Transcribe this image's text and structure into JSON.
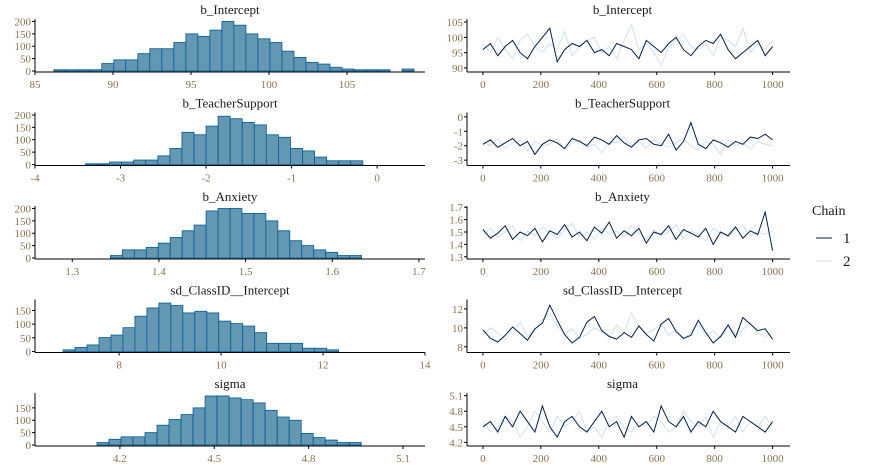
{
  "colors": {
    "hist_fill": "#6497b1",
    "hist_border": "#005b96",
    "chain_1": "#011f4b",
    "chain_2": "#d1e1ec",
    "tick_text": "#8a7250",
    "axis": "#000000"
  },
  "legend": {
    "title": "Chain",
    "entries": [
      "1",
      "2"
    ],
    "placement": "right"
  },
  "chart_data": [
    {
      "type": "bar",
      "title": "b_Intercept",
      "xlim": [
        85,
        110
      ],
      "xticks": [
        "85",
        "90",
        "95",
        "100",
        "105"
      ],
      "xtick_values": [
        85,
        90,
        95,
        100,
        105
      ],
      "yticks": [
        "0",
        "50",
        "100",
        "150",
        "200"
      ],
      "ylim": [
        0,
        210
      ],
      "bin_start": 86.2,
      "bin_width": 0.77,
      "counts": [
        5,
        5,
        5,
        5,
        30,
        45,
        45,
        70,
        90,
        90,
        115,
        150,
        140,
        165,
        200,
        185,
        150,
        130,
        115,
        80,
        55,
        35,
        28,
        15,
        8,
        5,
        5,
        5,
        0,
        8
      ]
    },
    {
      "type": "bar",
      "title": "b_TeacherSupport",
      "xlim": [
        -4,
        0.56
      ],
      "xticks": [
        "-4",
        "-3",
        "-2",
        "-1",
        "0"
      ],
      "xtick_values": [
        -4,
        -3,
        -2,
        -1,
        0
      ],
      "yticks": [
        "0",
        "50",
        "100",
        "150",
        "200"
      ],
      "ylim": [
        0,
        210
      ],
      "bin_start": -3.41,
      "bin_width": 0.141,
      "counts": [
        3,
        3,
        10,
        10,
        18,
        18,
        35,
        65,
        130,
        120,
        155,
        195,
        185,
        170,
        160,
        120,
        110,
        65,
        55,
        30,
        15,
        15,
        15
      ]
    },
    {
      "type": "bar",
      "title": "b_Anxiety",
      "xlim": [
        1.257,
        1.707
      ],
      "xticks": [
        "1.3",
        "1.4",
        "1.5",
        "1.6",
        "1.7"
      ],
      "xtick_values": [
        1.3,
        1.4,
        1.5,
        1.6,
        1.7
      ],
      "yticks": [
        "0",
        "50",
        "100",
        "150",
        "200"
      ],
      "ylim": [
        0,
        210
      ],
      "bin_start": 1.344,
      "bin_width": 0.0138,
      "counts": [
        10,
        33,
        33,
        43,
        60,
        83,
        110,
        133,
        190,
        200,
        200,
        180,
        180,
        150,
        110,
        70,
        50,
        33,
        23,
        10,
        10
      ]
    },
    {
      "type": "bar",
      "title": "sd_ClassID__Intercept",
      "xlim": [
        6.35,
        14.0
      ],
      "xticks": [
        "8",
        "10",
        "12",
        "14"
      ],
      "xtick_values": [
        8,
        10,
        12,
        14
      ],
      "yticks": [
        "0",
        "50",
        "100",
        "150"
      ],
      "ylim": [
        0,
        190
      ],
      "bin_start": 6.9,
      "bin_width": 0.235,
      "counts": [
        6,
        15,
        24,
        51,
        60,
        87,
        129,
        159,
        177,
        168,
        141,
        147,
        141,
        111,
        102,
        93,
        69,
        30,
        30,
        30,
        12,
        12,
        6
      ]
    },
    {
      "type": "bar",
      "title": "sigma",
      "xlim": [
        3.93,
        5.17
      ],
      "xticks": [
        "4.2",
        "4.5",
        "4.8",
        "5.1"
      ],
      "xtick_values": [
        4.2,
        4.5,
        4.8,
        5.1
      ],
      "yticks": [
        "0",
        "50",
        "100",
        "150"
      ],
      "ylim": [
        0,
        210
      ],
      "bin_start": 4.127,
      "bin_width": 0.0382,
      "counts": [
        10,
        23,
        33,
        33,
        50,
        80,
        103,
        123,
        150,
        198,
        198,
        190,
        183,
        170,
        140,
        113,
        100,
        47,
        30,
        20,
        10,
        10
      ]
    },
    {
      "type": "line",
      "title": "b_Intercept",
      "xlim": [
        -55,
        1060
      ],
      "xticks": [
        "0",
        "200",
        "400",
        "600",
        "800",
        "1000"
      ],
      "xtick_values": [
        0,
        200,
        400,
        600,
        800,
        1000
      ],
      "yticks": [
        "90",
        "95",
        "100",
        "105"
      ],
      "ytick_values": [
        90,
        95,
        100,
        105
      ],
      "ylim": [
        89,
        106
      ],
      "series": [
        {
          "name": "1",
          "values": [
            96,
            98,
            94,
            97,
            99,
            95,
            93,
            97,
            100,
            103,
            92,
            96,
            98,
            97,
            99,
            95,
            96,
            94,
            98,
            97,
            96,
            93,
            99,
            97,
            95,
            98,
            100,
            96,
            94,
            97,
            99,
            98,
            101,
            96,
            93,
            95,
            97,
            99,
            94,
            97
          ]
        },
        {
          "name": "2",
          "values": [
            98,
            95,
            100,
            96,
            93,
            99,
            101,
            97,
            95,
            98,
            96,
            102,
            94,
            97,
            99,
            100,
            95,
            97,
            93,
            99,
            104,
            96,
            98,
            95,
            91,
            97,
            99,
            101,
            97,
            96,
            98,
            94,
            100,
            99,
            97,
            103,
            95,
            98,
            96,
            99
          ]
        }
      ]
    },
    {
      "type": "line",
      "title": "b_TeacherSupport",
      "xlim": [
        -55,
        1060
      ],
      "xticks": [
        "0",
        "200",
        "400",
        "600",
        "800",
        "1000"
      ],
      "xtick_values": [
        0,
        200,
        400,
        600,
        800,
        1000
      ],
      "yticks": [
        "-3",
        "-2",
        "-1",
        "0"
      ],
      "ytick_values": [
        -3,
        -2,
        -1,
        0
      ],
      "ylim": [
        -3.3,
        0.3
      ],
      "series": [
        {
          "name": "1",
          "values": [
            -1.9,
            -1.6,
            -2.1,
            -1.8,
            -1.5,
            -2.0,
            -1.7,
            -2.6,
            -1.9,
            -1.6,
            -1.8,
            -2.2,
            -1.5,
            -1.7,
            -2.0,
            -1.4,
            -1.6,
            -1.9,
            -1.3,
            -1.8,
            -2.1,
            -1.6,
            -1.5,
            -1.9,
            -2.0,
            -1.2,
            -2.3,
            -1.7,
            -0.4,
            -1.9,
            -2.2,
            -1.6,
            -1.8,
            -2.1,
            -1.7,
            -1.9,
            -1.4,
            -1.5,
            -1.2,
            -1.6
          ]
        },
        {
          "name": "2",
          "values": [
            -1.7,
            -2.0,
            -1.5,
            -2.2,
            -1.8,
            -1.6,
            -2.4,
            -1.7,
            -2.0,
            -1.9,
            -1.5,
            -2.3,
            -1.8,
            -1.6,
            -2.1,
            -1.9,
            -2.5,
            -1.7,
            -1.8,
            -1.4,
            -2.0,
            -1.7,
            -2.2,
            -1.6,
            -1.9,
            -2.1,
            -1.8,
            -1.5,
            -2.0,
            -2.3,
            -1.7,
            -1.9,
            -2.6,
            -1.6,
            -2.0,
            -1.8,
            -2.2,
            -1.7,
            -1.9,
            -2.0
          ]
        }
      ]
    },
    {
      "type": "line",
      "title": "b_Anxiety",
      "xlim": [
        -55,
        1060
      ],
      "xticks": [
        "0",
        "200",
        "400",
        "600",
        "800",
        "1000"
      ],
      "xtick_values": [
        0,
        200,
        400,
        600,
        800,
        1000
      ],
      "yticks": [
        "1.3",
        "1.4",
        "1.5",
        "1.6",
        "1.7"
      ],
      "ytick_values": [
        1.3,
        1.4,
        1.5,
        1.6,
        1.7
      ],
      "ylim": [
        1.29,
        1.71
      ],
      "series": [
        {
          "name": "1",
          "values": [
            1.52,
            1.45,
            1.49,
            1.55,
            1.44,
            1.5,
            1.47,
            1.53,
            1.42,
            1.51,
            1.48,
            1.56,
            1.46,
            1.5,
            1.43,
            1.54,
            1.49,
            1.58,
            1.45,
            1.51,
            1.47,
            1.53,
            1.41,
            1.5,
            1.48,
            1.55,
            1.44,
            1.52,
            1.49,
            1.46,
            1.53,
            1.4,
            1.5,
            1.47,
            1.54,
            1.45,
            1.51,
            1.48,
            1.66,
            1.35
          ]
        },
        {
          "name": "2",
          "values": [
            1.48,
            1.53,
            1.46,
            1.5,
            1.55,
            1.43,
            1.51,
            1.47,
            1.54,
            1.49,
            1.45,
            1.52,
            1.57,
            1.46,
            1.5,
            1.44,
            1.53,
            1.48,
            1.51,
            1.46,
            1.55,
            1.49,
            1.44,
            1.52,
            1.47,
            1.5,
            1.56,
            1.45,
            1.51,
            1.48,
            1.43,
            1.53,
            1.49,
            1.46,
            1.52,
            1.55,
            1.47,
            1.5,
            1.48,
            1.51
          ]
        }
      ]
    },
    {
      "type": "line",
      "title": "sd_ClassID__Intercept",
      "xlim": [
        -55,
        1060
      ],
      "xticks": [
        "0",
        "200",
        "400",
        "600",
        "800",
        "1000"
      ],
      "xtick_values": [
        0,
        200,
        400,
        600,
        800,
        1000
      ],
      "yticks": [
        "8",
        "10",
        "12"
      ],
      "ytick_values": [
        8,
        10,
        12
      ],
      "ylim": [
        7.5,
        13.0
      ],
      "series": [
        {
          "name": "1",
          "values": [
            9.8,
            8.9,
            8.5,
            9.2,
            10.1,
            9.4,
            8.7,
            9.9,
            10.5,
            12.4,
            10.8,
            9.3,
            8.4,
            9.0,
            10.6,
            11.2,
            9.7,
            9.1,
            8.8,
            9.5,
            9.0,
            10.2,
            9.3,
            8.6,
            10.4,
            11.0,
            9.6,
            8.9,
            9.2,
            10.8,
            9.5,
            8.4,
            9.1,
            10.3,
            9.0,
            11.1,
            10.4,
            9.7,
            9.9,
            8.8
          ]
        },
        {
          "name": "2",
          "values": [
            9.2,
            10.0,
            9.5,
            8.8,
            9.7,
            10.6,
            9.1,
            9.8,
            10.9,
            11.5,
            10.2,
            9.4,
            9.9,
            8.9,
            9.3,
            10.0,
            9.6,
            9.0,
            10.3,
            9.5,
            11.6,
            10.1,
            9.4,
            9.8,
            10.5,
            9.2,
            9.9,
            8.7,
            9.6,
            10.4,
            9.1,
            9.7,
            8.9,
            10.2,
            9.3,
            9.8,
            10.6,
            9.4,
            9.1,
            9.5
          ]
        }
      ]
    },
    {
      "type": "line",
      "title": "sigma",
      "xlim": [
        -55,
        1060
      ],
      "xticks": [
        "0",
        "200",
        "400",
        "600",
        "800",
        "1000"
      ],
      "xtick_values": [
        0,
        200,
        400,
        600,
        800,
        1000
      ],
      "yticks": [
        "4.2",
        "4.5",
        "4.8",
        "5.1"
      ],
      "ytick_values": [
        4.2,
        4.5,
        4.8,
        5.1
      ],
      "ylim": [
        4.15,
        5.15
      ],
      "series": [
        {
          "name": "1",
          "values": [
            4.5,
            4.6,
            4.4,
            4.7,
            4.5,
            4.8,
            4.6,
            4.4,
            4.9,
            4.5,
            4.3,
            4.6,
            4.7,
            4.5,
            4.4,
            4.6,
            4.8,
            4.5,
            4.6,
            4.3,
            4.7,
            4.5,
            4.6,
            4.4,
            4.9,
            4.6,
            4.5,
            4.7,
            4.4,
            4.6,
            4.5,
            4.8,
            4.6,
            4.5,
            4.4,
            4.7,
            4.6,
            4.5,
            4.4,
            4.6
          ]
        },
        {
          "name": "2",
          "values": [
            4.6,
            4.4,
            4.5,
            4.7,
            4.6,
            4.3,
            4.5,
            4.8,
            4.6,
            4.4,
            4.7,
            4.5,
            4.6,
            4.8,
            4.4,
            4.5,
            4.3,
            4.6,
            4.7,
            4.5,
            4.4,
            4.6,
            4.5,
            4.7,
            4.6,
            4.4,
            4.5,
            4.8,
            4.6,
            4.5,
            4.7,
            4.3,
            4.6,
            4.5,
            4.7,
            4.4,
            4.6,
            4.5,
            4.7,
            4.5
          ]
        }
      ]
    }
  ]
}
